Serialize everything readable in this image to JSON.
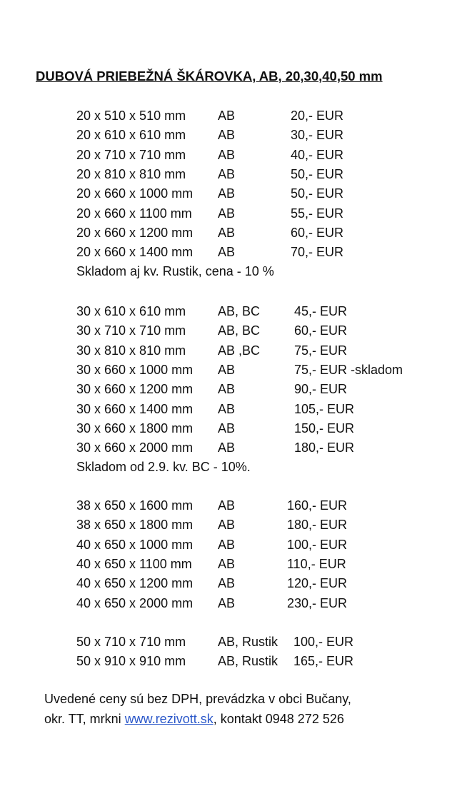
{
  "title": "DUBOVÁ PRIEBEŽNÁ ŠKÁROVKA, AB, 20,30,40,50 mm",
  "sections": [
    {
      "rows": [
        {
          "dim": "20 x 510 x 510 mm",
          "grade": "AB",
          "price": "20,- EUR"
        },
        {
          "dim": "20 x 610 x 610 mm",
          "grade": "AB",
          "price": "30,- EUR"
        },
        {
          "dim": "20 x 710 x 710 mm",
          "grade": "AB",
          "price": "40,- EUR"
        },
        {
          "dim": "20 x 810 x 810 mm",
          "grade": "AB",
          "price": "50,- EUR"
        },
        {
          "dim": "20 x 660 x 1000 mm",
          "grade": "AB",
          "price": "50,- EUR"
        },
        {
          "dim": "20 x 660 x 1100 mm",
          "grade": "AB",
          "price": "55,- EUR"
        },
        {
          "dim": "20 x 660 x 1200 mm",
          "grade": "AB",
          "price": "60,- EUR"
        },
        {
          "dim": "20 x 660 x 1400 mm",
          "grade": "AB",
          "price": "70,- EUR"
        }
      ],
      "note": "Skladom aj kv. Rustik, cena - 10 %"
    },
    {
      "rows": [
        {
          "dim": "30 x 610 x 610 mm",
          "grade": "AB, BC",
          "price": "45,- EUR"
        },
        {
          "dim": "30 x 710 x 710 mm",
          "grade": "AB, BC",
          "price": "60,- EUR"
        },
        {
          "dim": "30 x 810 x 810 mm",
          "grade": "AB ,BC",
          "price": "75,- EUR"
        },
        {
          "dim": "30 x 660 x 1000 mm",
          "grade": "AB",
          "price": "75,- EUR -skladom"
        },
        {
          "dim": "30 x 660 x 1200 mm",
          "grade": "AB",
          "price": "90,- EUR"
        },
        {
          "dim": "30 x 660 x 1400 mm",
          "grade": "AB",
          "price": "105,- EUR"
        },
        {
          "dim": "30 x 660 x 1800 mm",
          "grade": "AB",
          "price": "150,- EUR"
        },
        {
          "dim": "30 x 660 x 2000 mm",
          "grade": "AB",
          "price": "180,- EUR"
        }
      ],
      "note": "Skladom od 2.9.  kv. BC - 10%."
    },
    {
      "rows": [
        {
          "dim": "38 x 650 x 1600 mm",
          "grade": "AB",
          "price": "160,- EUR"
        },
        {
          "dim": "38 x 650 x 1800 mm",
          "grade": "AB",
          "price": "180,- EUR"
        },
        {
          "dim": "40 x 650 x 1000 mm",
          "grade": "AB",
          "price": "100,- EUR"
        },
        {
          "dim": "40 x 650 x 1100 mm",
          "grade": "AB",
          "price": "110,- EUR"
        },
        {
          "dim": "40 x 650 x 1200 mm",
          "grade": "AB",
          "price": "120,- EUR"
        },
        {
          "dim": "40 x 650 x 2000 mm",
          "grade": "AB",
          "price": "230,- EUR"
        }
      ]
    },
    {
      "rows": [
        {
          "dim": "50 x 710 x 710  mm",
          "grade": "AB, Rustik",
          "price": "100,- EUR"
        },
        {
          "dim": "50 x 910 x 910 mm",
          "grade": "AB, Rustik",
          "price": "165,- EUR"
        }
      ]
    }
  ],
  "footer": {
    "line1": "Uvedené ceny sú bez DPH, prevádzka v obci Bučany,",
    "line2_prefix": "okr. TT, mrkni ",
    "link": "www.rezivott.sk",
    "line2_suffix": ", kontakt 0948 272 526"
  },
  "colors": {
    "link": "#2a57c9",
    "text": "#111111"
  }
}
